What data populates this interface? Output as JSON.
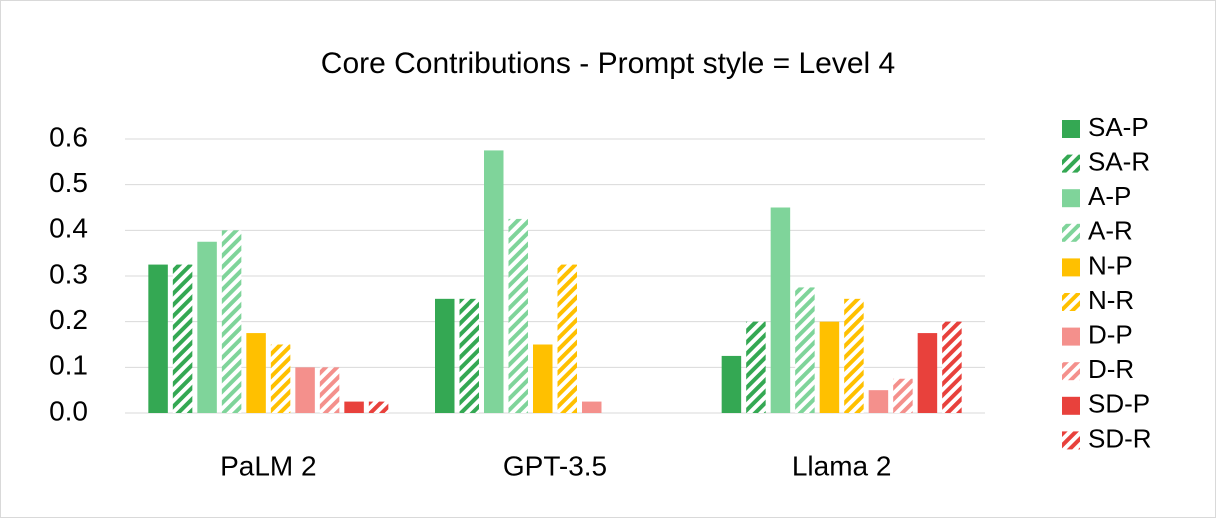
{
  "chart_data": {
    "type": "bar",
    "title": "Core Contributions - Prompt style = Level 4",
    "categories": [
      "PaLM 2",
      "GPT-3.5",
      "Llama 2"
    ],
    "series": [
      {
        "name": "SA-P",
        "color": "#34a853",
        "pattern": "solid",
        "values": [
          0.325,
          0.25,
          0.125
        ]
      },
      {
        "name": "SA-R",
        "color": "#34a853",
        "pattern": "hatch",
        "values": [
          0.325,
          0.25,
          0.2
        ]
      },
      {
        "name": "A-P",
        "color": "#7fd49a",
        "pattern": "solid",
        "values": [
          0.375,
          0.575,
          0.45
        ]
      },
      {
        "name": "A-R",
        "color": "#7fd49a",
        "pattern": "hatch",
        "values": [
          0.4,
          0.425,
          0.275
        ]
      },
      {
        "name": "N-P",
        "color": "#ffc000",
        "pattern": "solid",
        "values": [
          0.175,
          0.15,
          0.2
        ]
      },
      {
        "name": "N-R",
        "color": "#ffc000",
        "pattern": "hatch",
        "values": [
          0.15,
          0.325,
          0.25
        ]
      },
      {
        "name": "D-P",
        "color": "#f4908c",
        "pattern": "solid",
        "values": [
          0.1,
          0.025,
          0.05
        ]
      },
      {
        "name": "D-R",
        "color": "#f4908c",
        "pattern": "hatch",
        "values": [
          0.1,
          0,
          0.075
        ]
      },
      {
        "name": "SD-P",
        "color": "#e8413c",
        "pattern": "solid",
        "values": [
          0.025,
          0,
          0.175
        ]
      },
      {
        "name": "SD-R",
        "color": "#e8413c",
        "pattern": "hatch",
        "values": [
          0.025,
          0,
          0.2
        ]
      }
    ],
    "ylim": [
      0,
      0.6
    ],
    "yticks": [
      {
        "value": 0,
        "label": "0.0"
      },
      0.1,
      0.2,
      0.3,
      0.4,
      0.5,
      0.6
    ],
    "grid": true,
    "legend": "right"
  }
}
